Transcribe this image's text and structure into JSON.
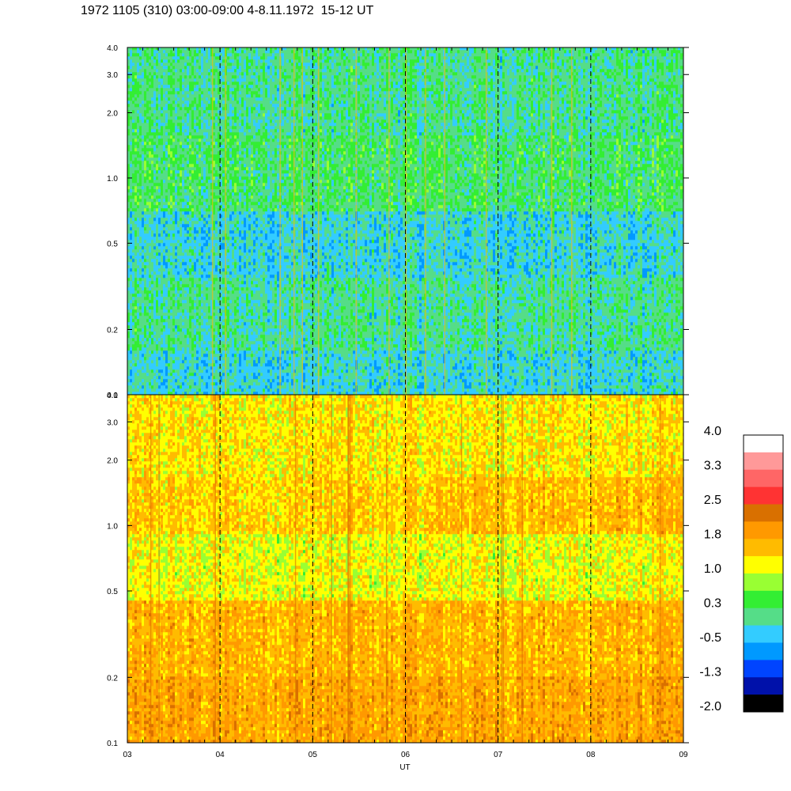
{
  "title": "1972 1105 (310) 03:00-09:00 4-8.11.1972  15-12 UT",
  "chart_data": {
    "type": "heatmap",
    "title": "1972 1105 (310) 03:00-09:00 4-8.11.1972  15-12 UT",
    "xlabel": "UT",
    "x_tick_labels": [
      "03",
      "04",
      "05",
      "06",
      "07",
      "08",
      "09"
    ],
    "x_range": [
      3,
      9
    ],
    "y_scale": "log",
    "y_range": [
      0.1,
      4.0
    ],
    "panels": [
      {
        "name": "upper",
        "y_ticks": [
          0.1,
          0.2,
          0.5,
          1.0,
          2.0,
          3.0,
          4.0
        ],
        "y_tick_labels": [
          "0.1",
          "0.2",
          "0.5",
          "1.0",
          "2.0",
          "3.0",
          "4.0"
        ],
        "dominant_levels": "-0.5 to 1.0 (blue/green)"
      },
      {
        "name": "lower",
        "y_ticks": [
          0.1,
          0.2,
          0.5,
          1.0,
          2.0,
          3.0,
          4.0
        ],
        "y_tick_labels": [
          "0.1",
          "0.2",
          "0.5",
          "1.0",
          "2.0",
          "3.0",
          "4.0"
        ],
        "dominant_levels": "0.3 to 2.5 (yellow/orange)"
      }
    ],
    "vertical_dashed_lines": [
      4,
      5,
      6,
      7,
      8
    ],
    "colorbar": {
      "labels": [
        "4.0",
        "3.3",
        "2.5",
        "1.8",
        "1.0",
        "0.3",
        "-0.5",
        "-1.3",
        "-2.0"
      ],
      "colors": [
        "#ffffff",
        "#ff9999",
        "#ff6666",
        "#ff3333",
        "#d97000",
        "#ff9900",
        "#ffbb00",
        "#ffff00",
        "#99ff33",
        "#33ee33",
        "#55dd88",
        "#33ccff",
        "#0099ff",
        "#0044ff",
        "#0011aa",
        "#000000"
      ]
    }
  }
}
